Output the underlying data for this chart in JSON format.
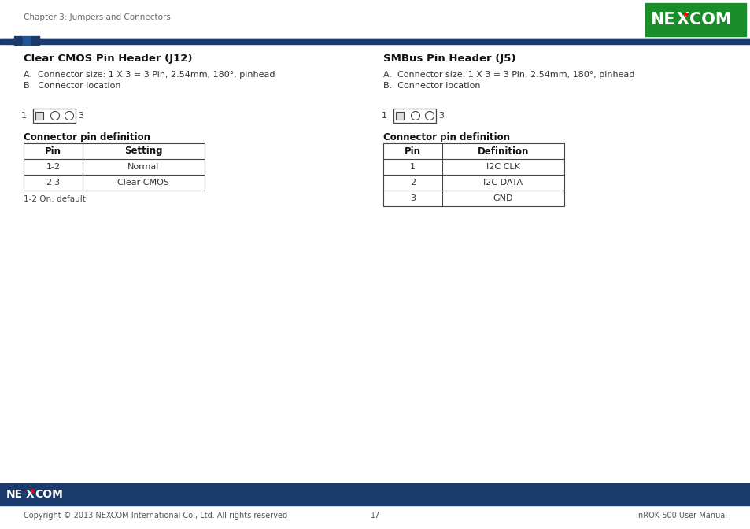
{
  "bg_color": "#ffffff",
  "dark_blue": "#1a3a6b",
  "mid_blue": "#1e5799",
  "header_text": "Chapter 3: Jumpers and Connectors",
  "header_text_color": "#666666",
  "header_text_size": 7.5,
  "left_section": {
    "title": "Clear CMOS Pin Header (J12)",
    "line_a": "A.  Connector size: 1 X 3 = 3 Pin, 2.54mm, 180°, pinhead",
    "line_b": "B.  Connector location",
    "table_title": "Connector pin definition",
    "table_headers": [
      "Pin",
      "Setting"
    ],
    "table_rows": [
      [
        "1-2",
        "Normal"
      ],
      [
        "2-3",
        "Clear CMOS"
      ]
    ],
    "note": "1-2 On: default"
  },
  "right_section": {
    "title": "SMBus Pin Header (J5)",
    "line_a": "A.  Connector size: 1 X 3 = 3 Pin, 2.54mm, 180°, pinhead",
    "line_b": "B.  Connector location",
    "table_title": "Connector pin definition",
    "table_headers": [
      "Pin",
      "Definition"
    ],
    "table_rows": [
      [
        "1",
        "I2C CLK"
      ],
      [
        "2",
        "I2C DATA"
      ],
      [
        "3",
        "GND"
      ]
    ]
  },
  "footer_bar_color": "#1a3a6b",
  "footer_text_left": "Copyright © 2013 NEXCOM International Co., Ltd. All rights reserved",
  "footer_text_center": "17",
  "footer_text_right": "nROK 500 User Manual",
  "footer_text_color": "#555555",
  "footer_text_size": 7
}
